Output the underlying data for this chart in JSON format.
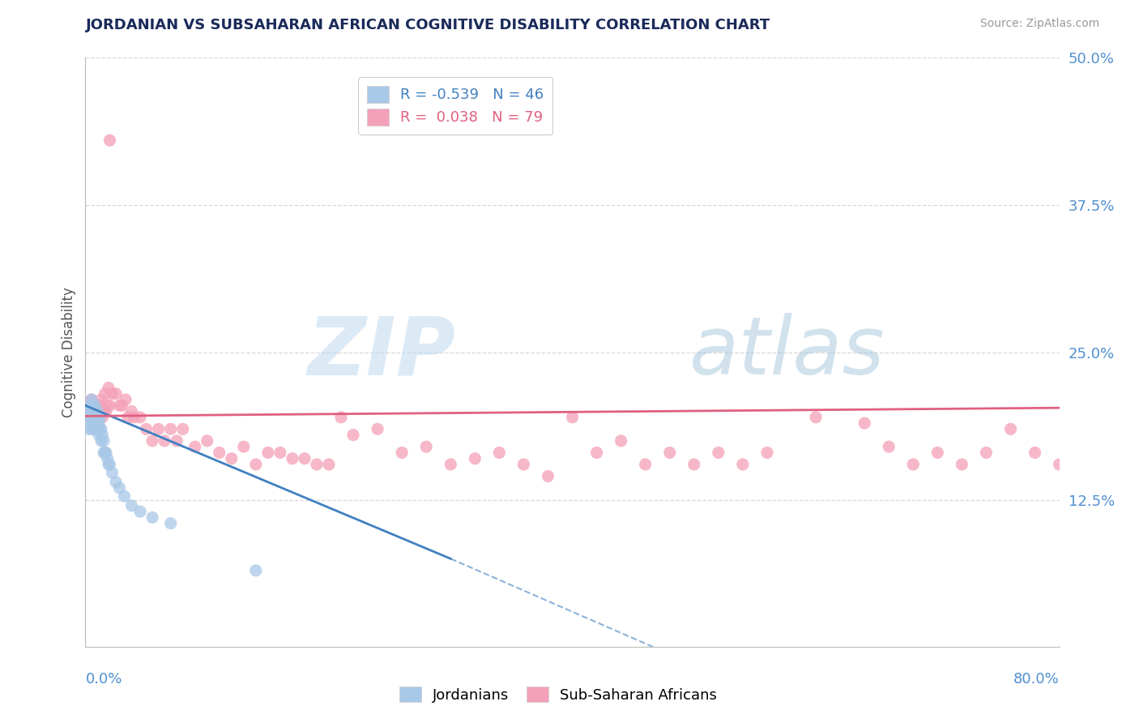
{
  "title": "JORDANIAN VS SUBSAHARAN AFRICAN COGNITIVE DISABILITY CORRELATION CHART",
  "source": "Source: ZipAtlas.com",
  "ylabel": "Cognitive Disability",
  "background_color": "#ffffff",
  "watermark_text": "ZIP",
  "watermark_text2": "atlas",
  "blue_color": "#a8c8e8",
  "pink_color": "#f4a0b8",
  "blue_line_color": "#4080c0",
  "pink_line_color": "#e06080",
  "title_color": "#1a2a5a",
  "axis_label_color": "#5090d0",
  "gridline_color": "#d8d8d8",
  "jordanians_x": [
    0.002,
    0.003,
    0.003,
    0.004,
    0.004,
    0.005,
    0.005,
    0.005,
    0.006,
    0.006,
    0.006,
    0.007,
    0.007,
    0.007,
    0.008,
    0.008,
    0.008,
    0.009,
    0.009,
    0.009,
    0.01,
    0.01,
    0.01,
    0.011,
    0.011,
    0.012,
    0.012,
    0.013,
    0.013,
    0.014,
    0.015,
    0.015,
    0.016,
    0.017,
    0.018,
    0.019,
    0.02,
    0.022,
    0.025,
    0.028,
    0.032,
    0.038,
    0.045,
    0.055,
    0.07,
    0.14
  ],
  "jordanians_y": [
    0.2,
    0.195,
    0.185,
    0.205,
    0.19,
    0.2,
    0.185,
    0.21,
    0.195,
    0.185,
    0.205,
    0.19,
    0.2,
    0.185,
    0.195,
    0.185,
    0.205,
    0.19,
    0.195,
    0.185,
    0.195,
    0.185,
    0.2,
    0.19,
    0.18,
    0.185,
    0.195,
    0.185,
    0.175,
    0.18,
    0.175,
    0.165,
    0.165,
    0.165,
    0.16,
    0.155,
    0.155,
    0.148,
    0.14,
    0.135,
    0.128,
    0.12,
    0.115,
    0.11,
    0.105,
    0.065
  ],
  "subsaharan_x": [
    0.002,
    0.003,
    0.004,
    0.005,
    0.006,
    0.006,
    0.007,
    0.008,
    0.009,
    0.01,
    0.01,
    0.011,
    0.012,
    0.013,
    0.014,
    0.015,
    0.016,
    0.017,
    0.018,
    0.019,
    0.02,
    0.022,
    0.025,
    0.028,
    0.03,
    0.033,
    0.035,
    0.038,
    0.04,
    0.045,
    0.05,
    0.055,
    0.06,
    0.065,
    0.07,
    0.075,
    0.08,
    0.09,
    0.1,
    0.11,
    0.12,
    0.13,
    0.14,
    0.15,
    0.16,
    0.17,
    0.18,
    0.19,
    0.2,
    0.21,
    0.22,
    0.24,
    0.26,
    0.28,
    0.3,
    0.32,
    0.34,
    0.36,
    0.38,
    0.4,
    0.42,
    0.44,
    0.46,
    0.48,
    0.5,
    0.52,
    0.54,
    0.56,
    0.6,
    0.64,
    0.66,
    0.68,
    0.7,
    0.72,
    0.74,
    0.76,
    0.78,
    0.8,
    0.02
  ],
  "subsaharan_y": [
    0.2,
    0.205,
    0.195,
    0.21,
    0.19,
    0.2,
    0.205,
    0.195,
    0.2,
    0.205,
    0.185,
    0.2,
    0.205,
    0.21,
    0.195,
    0.2,
    0.215,
    0.2,
    0.205,
    0.22,
    0.205,
    0.215,
    0.215,
    0.205,
    0.205,
    0.21,
    0.195,
    0.2,
    0.195,
    0.195,
    0.185,
    0.175,
    0.185,
    0.175,
    0.185,
    0.175,
    0.185,
    0.17,
    0.175,
    0.165,
    0.16,
    0.17,
    0.155,
    0.165,
    0.165,
    0.16,
    0.16,
    0.155,
    0.155,
    0.195,
    0.18,
    0.185,
    0.165,
    0.17,
    0.155,
    0.16,
    0.165,
    0.155,
    0.145,
    0.195,
    0.165,
    0.175,
    0.155,
    0.165,
    0.155,
    0.165,
    0.155,
    0.165,
    0.195,
    0.19,
    0.17,
    0.155,
    0.165,
    0.155,
    0.165,
    0.185,
    0.165,
    0.155,
    0.43
  ],
  "blue_trend_x_start": 0.0,
  "blue_trend_y_start": 0.205,
  "blue_trend_x_end_solid": 0.3,
  "blue_trend_y_end_solid": 0.075,
  "blue_trend_x_end_dashed": 0.5,
  "blue_trend_y_end_dashed": -0.015,
  "pink_trend_x_start": 0.0,
  "pink_trend_y_start": 0.196,
  "pink_trend_x_end": 0.8,
  "pink_trend_y_end": 0.203,
  "xlim": [
    0.0,
    0.8
  ],
  "ylim": [
    0.0,
    0.5
  ],
  "yticks": [
    0.0,
    0.125,
    0.25,
    0.375,
    0.5
  ],
  "ytick_labels": [
    "",
    "12.5%",
    "25.0%",
    "37.5%",
    "50.0%"
  ],
  "legend_line1": "R = -0.539   N = 46",
  "legend_line2": "R =  0.038   N = 79",
  "bottom_legend": [
    "Jordanians",
    "Sub-Saharan Africans"
  ]
}
